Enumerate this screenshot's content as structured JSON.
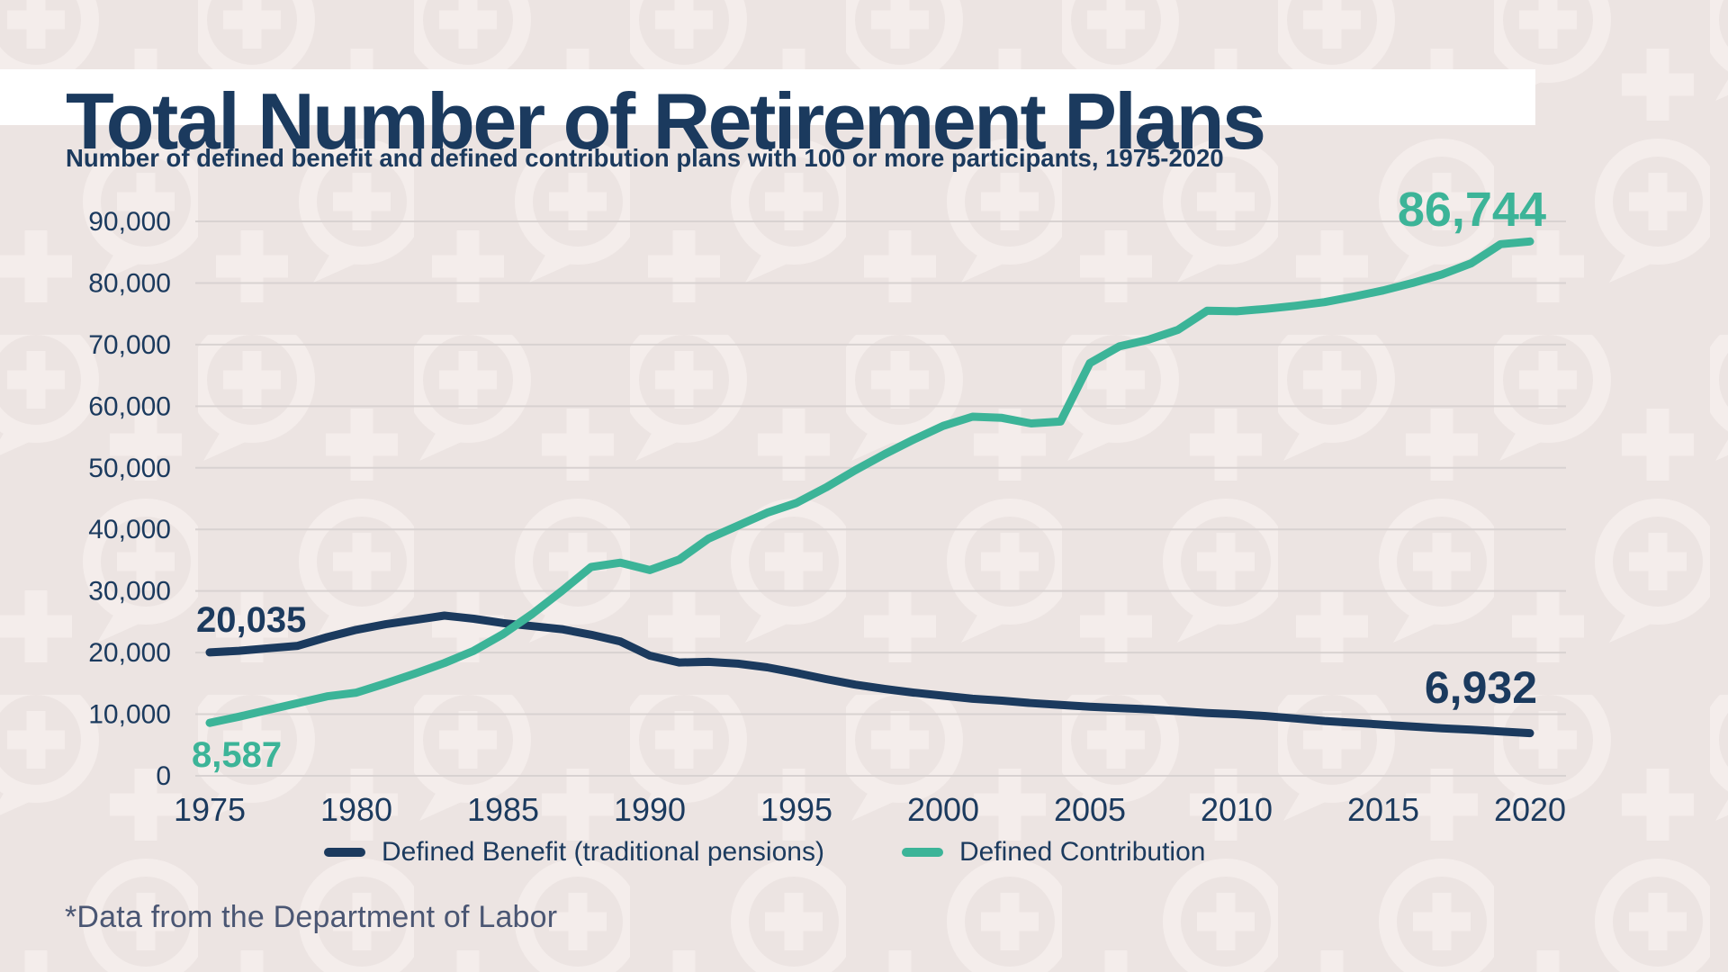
{
  "page": {
    "title": "Total Number of Retirement Plans",
    "subtitle": "Number of defined benefit and defined contribution plans with 100 or more participants, 1975-2020",
    "footnote": "*Data from the Department of Labor"
  },
  "colors": {
    "background": "#ece4e2",
    "pattern": "#f4edeb",
    "navy": "#1b3a5e",
    "teal": "#3cb498",
    "gridline": "#d8d2d1",
    "footnote_text": "#4a5673",
    "title_band": "#ffffff"
  },
  "chart_data": {
    "type": "line",
    "title": "Total Number of Retirement Plans",
    "subtitle": "Number of defined benefit and defined contribution plans with 100 or more participants, 1975-2020",
    "x": [
      1975,
      1976,
      1977,
      1978,
      1979,
      1980,
      1981,
      1982,
      1983,
      1984,
      1985,
      1986,
      1987,
      1988,
      1989,
      1990,
      1991,
      1992,
      1993,
      1994,
      1995,
      1996,
      1997,
      1998,
      1999,
      2000,
      2001,
      2002,
      2003,
      2004,
      2005,
      2006,
      2007,
      2008,
      2009,
      2010,
      2011,
      2012,
      2013,
      2014,
      2015,
      2016,
      2017,
      2018,
      2019,
      2020
    ],
    "series": [
      {
        "name": "Defined Benefit (traditional pensions)",
        "color_key": "navy",
        "values": [
          20035,
          20300,
          20700,
          21100,
          22500,
          23700,
          24600,
          25300,
          26000,
          25500,
          24800,
          24300,
          23800,
          22900,
          21800,
          19500,
          18400,
          18500,
          18200,
          17600,
          16700,
          15700,
          14800,
          14100,
          13500,
          13000,
          12500,
          12200,
          11800,
          11500,
          11200,
          11000,
          10800,
          10500,
          10200,
          10000,
          9700,
          9300,
          8900,
          8600,
          8300,
          8000,
          7700,
          7500,
          7200,
          6932
        ]
      },
      {
        "name": "Defined Contribution",
        "color_key": "teal",
        "values": [
          8587,
          9600,
          10700,
          11800,
          12900,
          13500,
          15000,
          16600,
          18300,
          20300,
          23000,
          26300,
          30000,
          33900,
          34600,
          33400,
          35100,
          38500,
          40600,
          42700,
          44300,
          46800,
          49600,
          52200,
          54600,
          56800,
          58300,
          58100,
          57200,
          57500,
          67000,
          69700,
          70800,
          72400,
          75500,
          75400,
          75800,
          76300,
          76900,
          77800,
          78800,
          80000,
          81400,
          83200,
          86300,
          86744
        ]
      }
    ],
    "x_ticks": [
      "1975",
      "1980",
      "1985",
      "1990",
      "1995",
      "2000",
      "2005",
      "2010",
      "2015",
      "2020"
    ],
    "y_ticks": [
      {
        "value": 0,
        "label": "0"
      },
      {
        "value": 10000,
        "label": "10,000"
      },
      {
        "value": 20000,
        "label": "20,000"
      },
      {
        "value": 30000,
        "label": "30,000"
      },
      {
        "value": 40000,
        "label": "40,000"
      },
      {
        "value": 50000,
        "label": "50,000"
      },
      {
        "value": 60000,
        "label": "60,000"
      },
      {
        "value": 70000,
        "label": "70,000"
      },
      {
        "value": 80000,
        "label": "80,000"
      },
      {
        "value": 90000,
        "label": "90,000"
      }
    ],
    "ylim": [
      0,
      90000
    ],
    "xlim": [
      1975,
      2020
    ],
    "grid": "horizontal",
    "legend_position": "bottom",
    "annotations": [
      {
        "text": "20,035",
        "color_key": "navy",
        "year": 1975,
        "value": 20035
      },
      {
        "text": "8,587",
        "color_key": "teal",
        "year": 1975,
        "value": 8587
      },
      {
        "text": "86,744",
        "color_key": "teal",
        "year": 2020,
        "value": 86744
      },
      {
        "text": "6,932",
        "color_key": "navy",
        "year": 2020,
        "value": 6932
      }
    ]
  }
}
